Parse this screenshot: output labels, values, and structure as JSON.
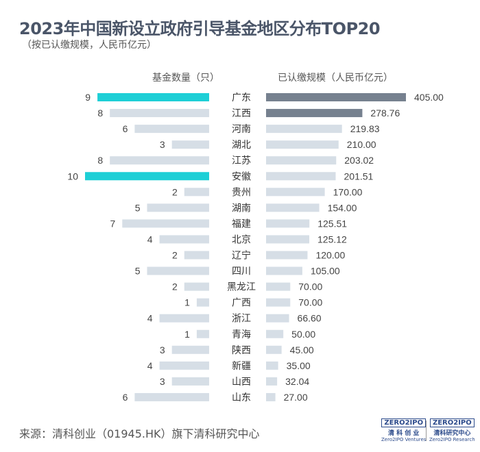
{
  "title": "2023年中国新设立政府引导基金地区分布TOP20",
  "subtitle": "（按已认缴规模，人民币亿元）",
  "source": "来源：清科创业（01945.HK）旗下清科研究中心",
  "logos": [
    {
      "mark": "ZERO2IPO",
      "cn": "清 科 创 业",
      "en": "Zero2IPO Ventures"
    },
    {
      "mark": "ZERO2IPO",
      "cn": "清科研究中心",
      "en": "Zero2IPO Research"
    }
  ],
  "colors": {
    "highlight_count": "#1ecfd6",
    "normal_count": "#d6dee6",
    "highlight_scale": "#76818f",
    "normal_scale": "#d6dee6"
  },
  "chart_data": {
    "type": "bar",
    "categories": [
      "广东",
      "江西",
      "河南",
      "湖北",
      "江苏",
      "安徽",
      "贵州",
      "湖南",
      "福建",
      "北京",
      "辽宁",
      "四川",
      "黑龙江",
      "广西",
      "浙江",
      "青海",
      "陕西",
      "新疆",
      "山西",
      "山东"
    ],
    "series": [
      {
        "name": "基金数量（只）",
        "values": [
          9,
          8,
          6,
          3,
          8,
          10,
          2,
          5,
          7,
          4,
          2,
          5,
          2,
          1,
          4,
          1,
          3,
          4,
          3,
          6
        ],
        "highlight": [
          9,
          10
        ]
      },
      {
        "name": "已认缴规模（人民币亿元）",
        "values": [
          405.0,
          278.76,
          219.83,
          210.0,
          203.02,
          201.51,
          170.0,
          154.0,
          125.51,
          125.12,
          120.0,
          105.0,
          70.0,
          70.0,
          66.6,
          50.0,
          45.0,
          35.0,
          32.04,
          27.0
        ],
        "highlight_top": 2
      }
    ]
  }
}
